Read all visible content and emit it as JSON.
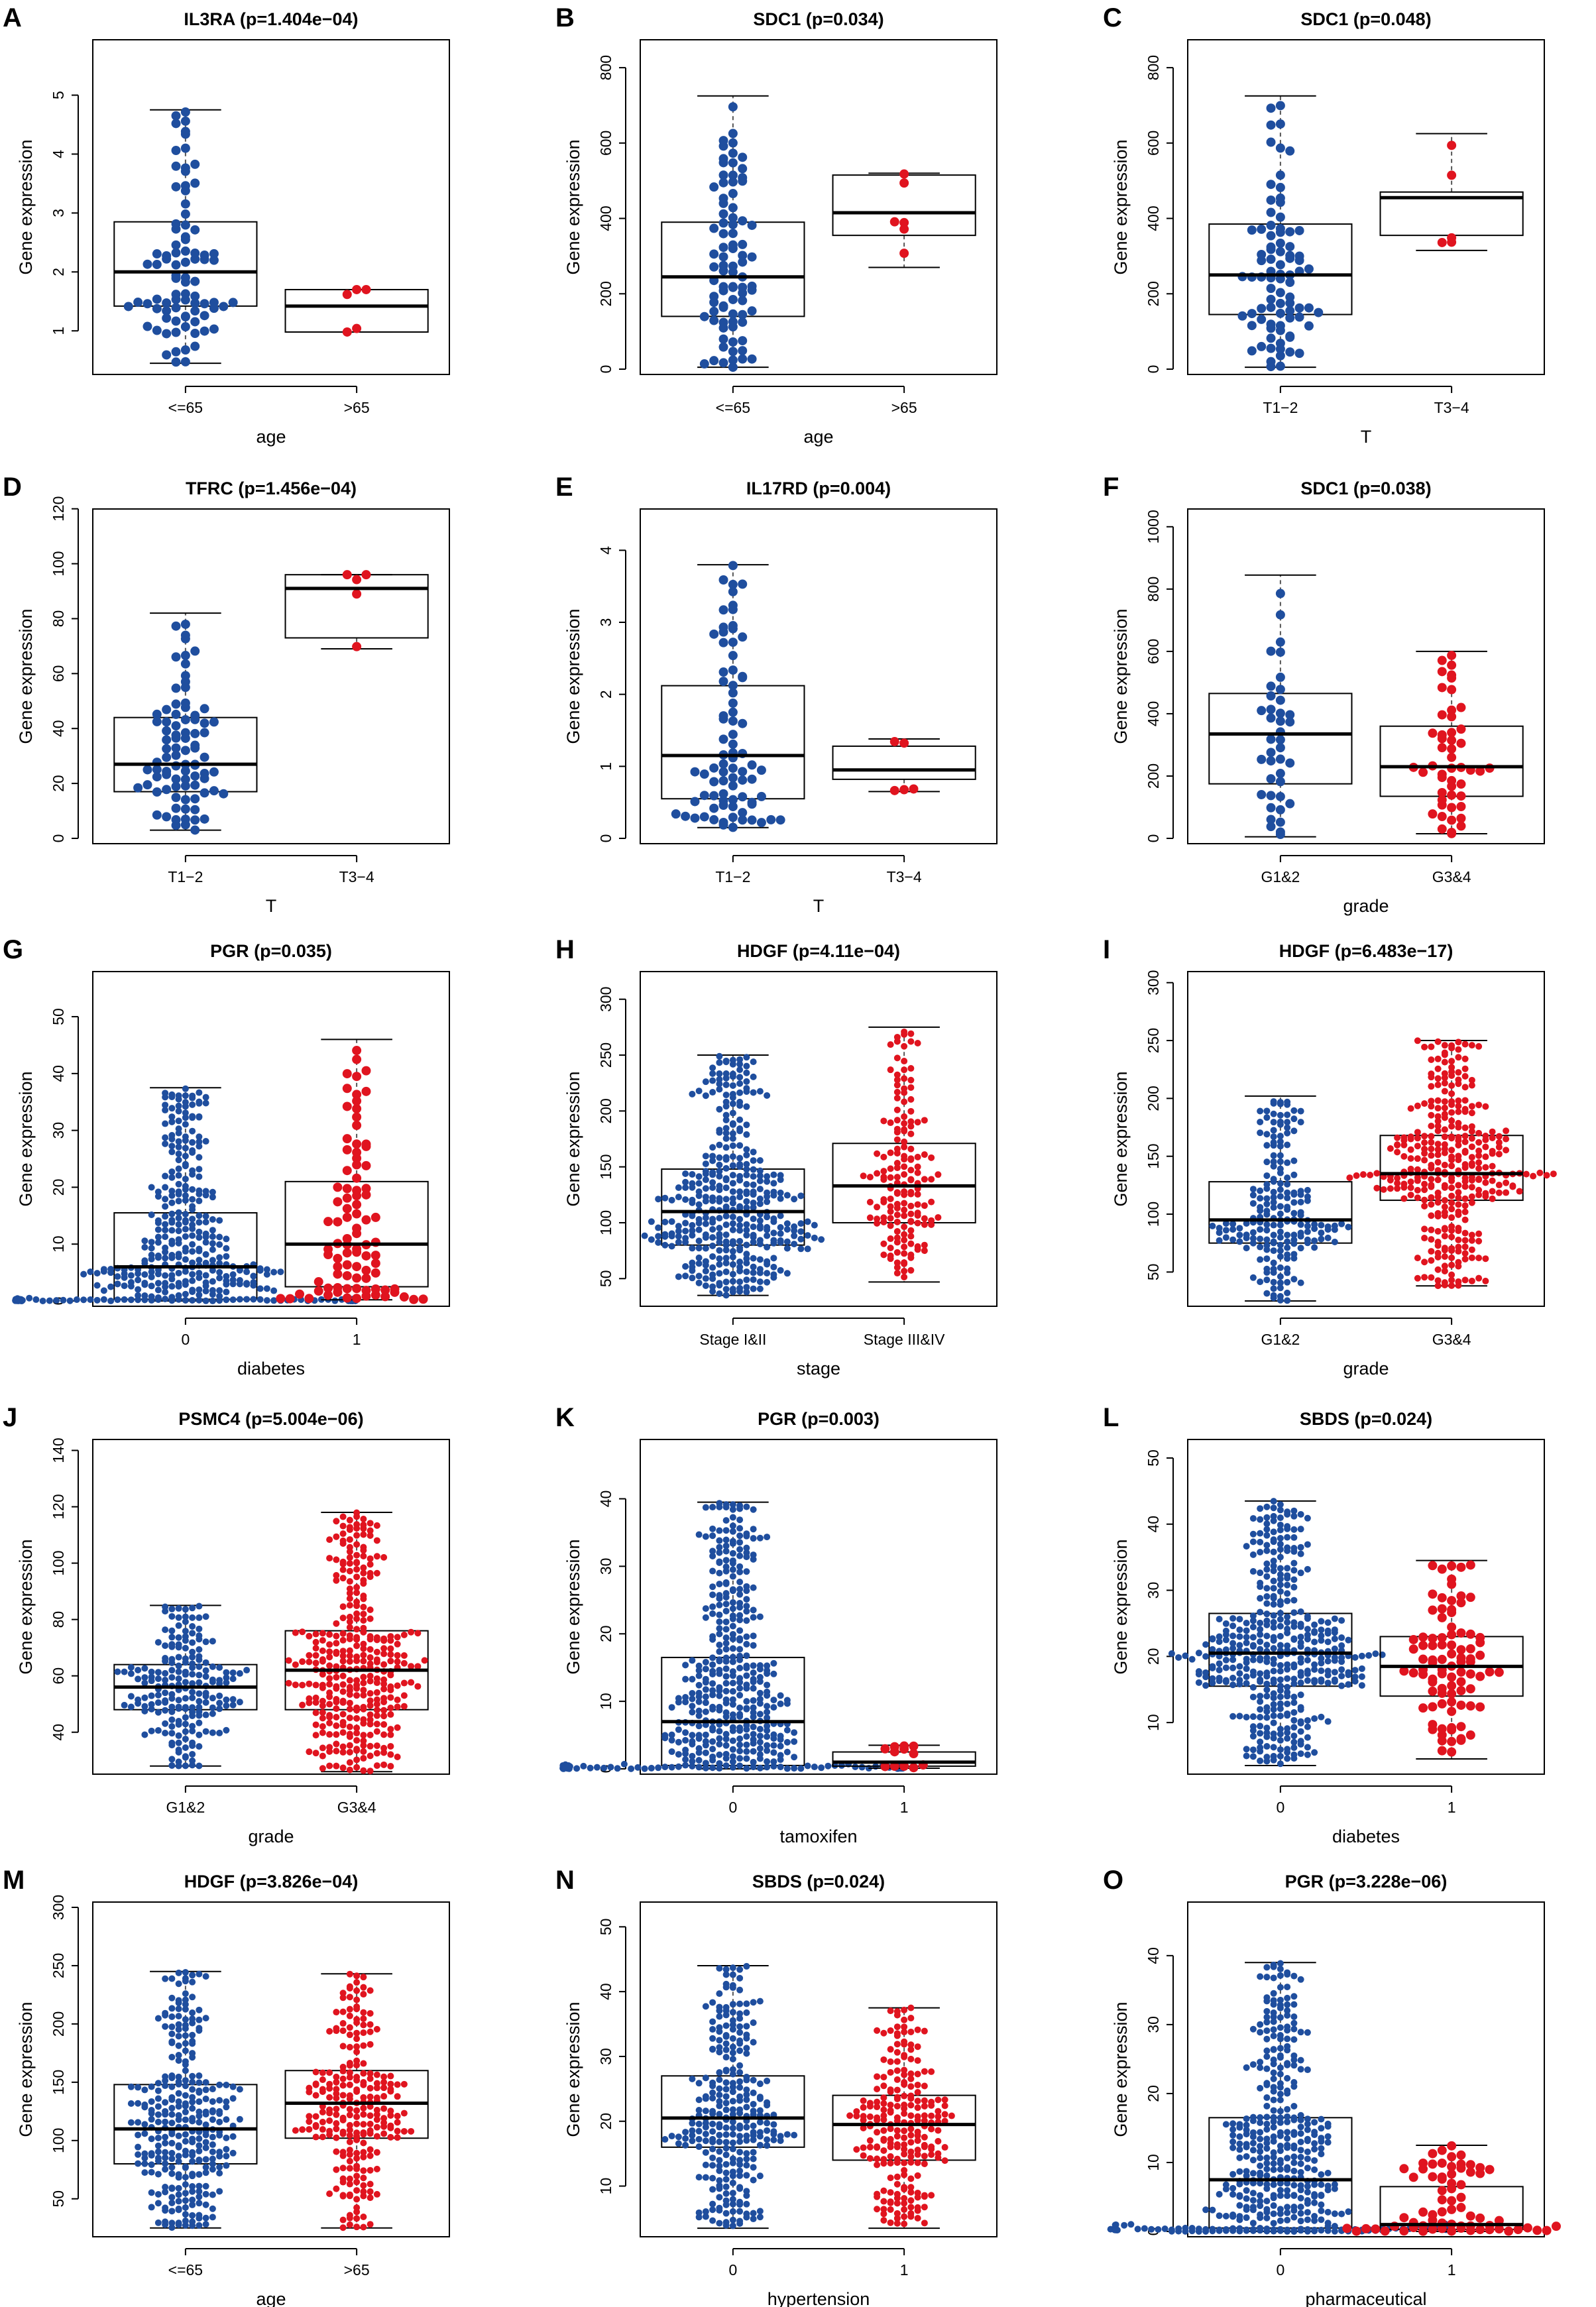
{
  "colors": {
    "group_a": "#1f4e9e",
    "group_b": "#e0141f",
    "box": "#000000",
    "whisker": "#555555"
  },
  "chart_data": [
    {
      "type": "box",
      "panel": "A",
      "title": "IL3RA (p=1.404e−04)",
      "xlabel": "age",
      "ylabel": "Gene expression",
      "categories": [
        "<=65",
        ">65"
      ],
      "ylim": [
        0.35,
        5.85
      ],
      "yticks": [
        1,
        2,
        3,
        4,
        5
      ],
      "n": [
        85,
        5
      ],
      "boxes": [
        {
          "min": 0.45,
          "q1": 1.42,
          "median": 2.0,
          "q3": 2.85,
          "max": 4.75
        },
        {
          "min": 0.98,
          "q1": 0.98,
          "median": 1.42,
          "q3": 1.7,
          "max": 1.7
        }
      ]
    },
    {
      "type": "box",
      "panel": "B",
      "title": "SDC1 (p=0.034)",
      "xlabel": "age",
      "ylabel": "Gene expression",
      "categories": [
        "<=65",
        ">65"
      ],
      "ylim": [
        0,
        860
      ],
      "yticks": [
        0,
        200,
        400,
        600,
        800
      ],
      "n": [
        85,
        6
      ],
      "boxes": [
        {
          "min": 5,
          "q1": 140,
          "median": 245,
          "q3": 390,
          "max": 725
        },
        {
          "min": 270,
          "q1": 355,
          "median": 415,
          "q3": 515,
          "max": 520
        }
      ]
    },
    {
      "type": "box",
      "panel": "C",
      "title": "SDC1 (p=0.048)",
      "xlabel": "T",
      "ylabel": "Gene expression",
      "categories": [
        "T1−2",
        "T3−4"
      ],
      "ylim": [
        0,
        860
      ],
      "yticks": [
        0,
        200,
        400,
        600,
        800
      ],
      "n": [
        85,
        5
      ],
      "boxes": [
        {
          "min": 5,
          "q1": 145,
          "median": 250,
          "q3": 385,
          "max": 725
        },
        {
          "min": 315,
          "q1": 355,
          "median": 455,
          "q3": 470,
          "max": 625
        }
      ]
    },
    {
      "type": "box",
      "panel": "D",
      "title": "TFRC (p=1.456e−04)",
      "xlabel": "T",
      "ylabel": "Gene expression",
      "categories": [
        "T1−2",
        "T3−4"
      ],
      "ylim": [
        0,
        118
      ],
      "yticks": [
        0,
        20,
        40,
        60,
        80,
        100,
        120
      ],
      "n": [
        85,
        5
      ],
      "boxes": [
        {
          "min": 3,
          "q1": 17,
          "median": 27,
          "q3": 44,
          "max": 82
        },
        {
          "min": 69,
          "q1": 73,
          "median": 91,
          "q3": 96,
          "max": 96
        }
      ]
    },
    {
      "type": "box",
      "panel": "E",
      "title": "IL17RD (p=0.004)",
      "xlabel": "T",
      "ylabel": "Gene expression",
      "categories": [
        "T1−2",
        "T3−4"
      ],
      "ylim": [
        0,
        4.5
      ],
      "yticks": [
        0,
        1,
        2,
        3,
        4
      ],
      "n": [
        80,
        5
      ],
      "boxes": [
        {
          "min": 0.15,
          "q1": 0.55,
          "median": 1.15,
          "q3": 2.12,
          "max": 3.8
        },
        {
          "min": 0.65,
          "q1": 0.82,
          "median": 0.95,
          "q3": 1.28,
          "max": 1.38
        }
      ]
    },
    {
      "type": "box",
      "panel": "F",
      "title": "SDC1 (p=0.038)",
      "xlabel": "grade",
      "ylabel": "Gene expression",
      "categories": [
        "G1&2",
        "G3&4"
      ],
      "ylim": [
        0,
        1040
      ],
      "yticks": [
        0,
        200,
        400,
        600,
        800,
        1000
      ],
      "n": [
        40,
        50
      ],
      "boxes": [
        {
          "min": 5,
          "q1": 175,
          "median": 335,
          "q3": 465,
          "max": 845
        },
        {
          "min": 15,
          "q1": 135,
          "median": 230,
          "q3": 360,
          "max": 600
        }
      ]
    },
    {
      "type": "box",
      "panel": "G",
      "title": "PGR (p=0.035)",
      "xlabel": "diabetes",
      "ylabel": "Gene expression",
      "categories": [
        "0",
        "1"
      ],
      "ylim": [
        0,
        57
      ],
      "yticks": [
        0,
        10,
        20,
        30,
        40,
        50
      ],
      "n": [
        420,
        90
      ],
      "boxes": [
        {
          "min": 0,
          "q1": 0.3,
          "median": 6,
          "q3": 15.5,
          "max": 37.5
        },
        {
          "min": 0.2,
          "q1": 2.5,
          "median": 10,
          "q3": 21,
          "max": 46
        }
      ]
    },
    {
      "type": "box",
      "panel": "H",
      "title": "HDGF (p=4.11e−04)",
      "xlabel": "stage",
      "ylabel": "Gene expression",
      "categories": [
        "Stage I&II",
        "Stage III&IV"
      ],
      "ylim": [
        30,
        320
      ],
      "yticks": [
        50,
        100,
        150,
        200,
        250,
        300
      ],
      "n": [
        380,
        160
      ],
      "boxes": [
        {
          "min": 35,
          "q1": 80,
          "median": 110,
          "q3": 148,
          "max": 250
        },
        {
          "min": 47,
          "q1": 100,
          "median": 133,
          "q3": 171,
          "max": 275
        }
      ]
    },
    {
      "type": "box",
      "panel": "I",
      "title": "HDGF (p=6.483e−17)",
      "xlabel": "grade",
      "ylabel": "Gene expression",
      "categories": [
        "G1&2",
        "G3&4"
      ],
      "ylim": [
        25,
        305
      ],
      "yticks": [
        50,
        100,
        150,
        200,
        250,
        300
      ],
      "n": [
        200,
        340
      ],
      "boxes": [
        {
          "min": 25,
          "q1": 75,
          "median": 95,
          "q3": 128,
          "max": 202
        },
        {
          "min": 38,
          "q1": 112,
          "median": 135,
          "q3": 168,
          "max": 250
        }
      ]
    },
    {
      "type": "box",
      "panel": "J",
      "title": "PSMC4 (p=5.004e−06)",
      "xlabel": "grade",
      "ylabel": "Gene expression",
      "categories": [
        "G1&2",
        "G3&4"
      ],
      "ylim": [
        27,
        142
      ],
      "yticks": [
        40,
        60,
        80,
        100,
        120,
        140
      ],
      "n": [
        200,
        340
      ],
      "boxes": [
        {
          "min": 28,
          "q1": 48,
          "median": 56,
          "q3": 64,
          "max": 85
        },
        {
          "min": 26,
          "q1": 48,
          "median": 62,
          "q3": 76,
          "max": 118
        }
      ]
    },
    {
      "type": "box",
      "panel": "K",
      "title": "PGR (p=0.003)",
      "xlabel": "tamoxifen",
      "ylabel": "Gene expression",
      "categories": [
        "0",
        "1"
      ],
      "ylim": [
        0,
        48
      ],
      "yticks": [
        0,
        10,
        20,
        30,
        40
      ],
      "n": [
        480,
        12
      ],
      "boxes": [
        {
          "min": 0,
          "q1": 0.5,
          "median": 7,
          "q3": 16.5,
          "max": 39.5
        },
        {
          "min": 0.1,
          "q1": 0.4,
          "median": 1,
          "q3": 2.5,
          "max": 3.5
        }
      ]
    },
    {
      "type": "box",
      "panel": "L",
      "title": "SBDS (p=0.024)",
      "xlabel": "diabetes",
      "ylabel": "Gene expression",
      "categories": [
        "0",
        "1"
      ],
      "ylim": [
        3,
        52
      ],
      "yticks": [
        10,
        20,
        30,
        40,
        50
      ],
      "n": [
        420,
        90
      ],
      "boxes": [
        {
          "min": 3.5,
          "q1": 15.5,
          "median": 20.5,
          "q3": 26.5,
          "max": 43.5
        },
        {
          "min": 4.5,
          "q1": 14,
          "median": 18.5,
          "q3": 23,
          "max": 34.5
        }
      ]
    },
    {
      "type": "box",
      "panel": "M",
      "title": "HDGF (p=3.826e−04)",
      "xlabel": "age",
      "ylabel": "Gene expression",
      "categories": [
        "<=65",
        ">65"
      ],
      "ylim": [
        22,
        300
      ],
      "yticks": [
        50,
        100,
        150,
        200,
        250,
        300
      ],
      "n": [
        300,
        240
      ],
      "boxes": [
        {
          "min": 25,
          "q1": 80,
          "median": 110,
          "q3": 148,
          "max": 245
        },
        {
          "min": 25,
          "q1": 102,
          "median": 132,
          "q3": 160,
          "max": 243
        }
      ]
    },
    {
      "type": "box",
      "panel": "N",
      "title": "SBDS (p=0.024)",
      "xlabel": "hypertension",
      "ylabel": "Gene expression",
      "categories": [
        "0",
        "1"
      ],
      "ylim": [
        3,
        53
      ],
      "yticks": [
        10,
        20,
        30,
        40,
        50
      ],
      "n": [
        280,
        230
      ],
      "boxes": [
        {
          "min": 3.5,
          "q1": 16,
          "median": 20.5,
          "q3": 27,
          "max": 44
        },
        {
          "min": 3.5,
          "q1": 14,
          "median": 19.5,
          "q3": 24,
          "max": 37.5
        }
      ]
    },
    {
      "type": "box",
      "panel": "O",
      "title": "PGR (p=3.228e−06)",
      "xlabel": "pharmaceutical",
      "ylabel": "Gene expression",
      "categories": [
        "0",
        "1"
      ],
      "ylim": [
        0,
        47
      ],
      "yticks": [
        0,
        10,
        20,
        30,
        40
      ],
      "n": [
        440,
        70
      ],
      "boxes": [
        {
          "min": 0,
          "q1": 0.5,
          "median": 7.5,
          "q3": 16.5,
          "max": 39
        },
        {
          "min": 0,
          "q1": 0.3,
          "median": 1,
          "q3": 6.5,
          "max": 12.5
        }
      ]
    }
  ]
}
